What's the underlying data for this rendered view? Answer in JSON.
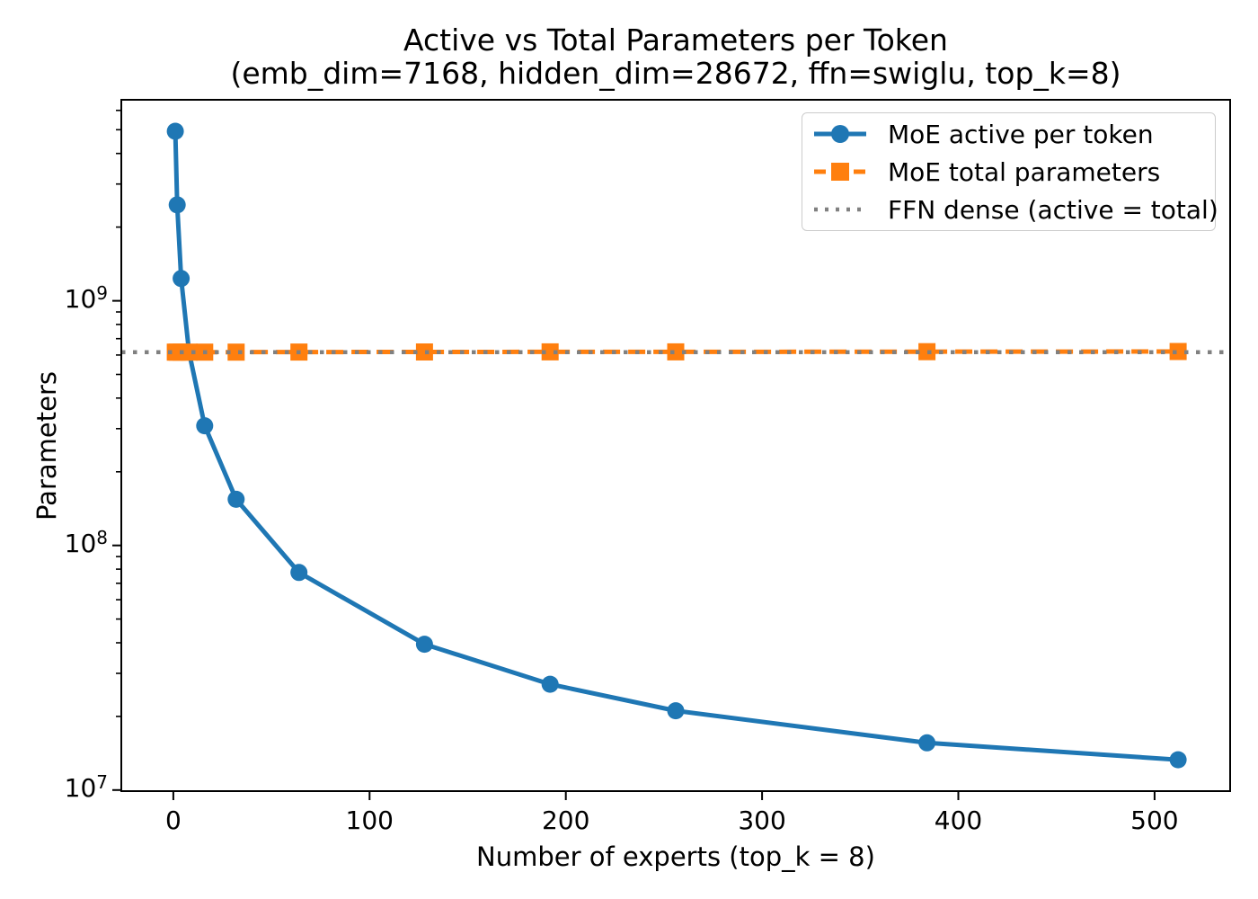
{
  "figure_background": "#ffffff",
  "chart_data": {
    "type": "line",
    "title": "Active vs Total Parameters per Token",
    "subtitle": "(emb_dim=7168, hidden_dim=28672, ffn=swiglu, top_k=8)",
    "xlabel": "Number of experts (top_k = 8)",
    "ylabel": "Parameters",
    "x_scale": "linear",
    "y_scale": "log",
    "grid": false,
    "legend_position": "upper right",
    "xlim": [
      -26.5,
      538.5
    ],
    "ylim": [
      9900000,
      6630000000
    ],
    "x_ticks": [
      {
        "label": "0",
        "value": 0
      },
      {
        "label": "100",
        "value": 100
      },
      {
        "label": "200",
        "value": 200
      },
      {
        "label": "300",
        "value": 300
      },
      {
        "label": "400",
        "value": 400
      },
      {
        "label": "500",
        "value": 500
      }
    ],
    "y_ticks": [
      {
        "base": "10",
        "exp": "7",
        "value": 10000000
      },
      {
        "base": "10",
        "exp": "8",
        "value": 100000000
      },
      {
        "base": "10",
        "exp": "9",
        "value": 1000000000
      }
    ],
    "x": [
      1,
      2,
      4,
      8,
      16,
      32,
      64,
      128,
      192,
      256,
      384,
      512
    ],
    "series": [
      {
        "name": "MoE active per token",
        "color": "#1f77b4",
        "style": "solid",
        "marker": "circle",
        "values": [
          4932508672,
          2466265088,
          1233154048,
          616620032,
          308396032,
          154370048,
          77529088,
          39452672,
          27066368,
          21102592,
          15597568,
          13303808
        ]
      },
      {
        "name": "MoE total parameters",
        "color": "#ff7f0e",
        "style": "dashed",
        "marker": "square",
        "values": [
          616569856,
          616577024,
          616591360,
          616620032,
          616677376,
          616792064,
          617021440,
          617480192,
          617938944,
          618397696,
          619315200,
          620232704
        ]
      },
      {
        "name": "FFN dense (active = total)",
        "color": "#808080",
        "style": "dotted",
        "marker": "none",
        "constant": 616562688,
        "span": "full-width"
      }
    ],
    "legend": [
      {
        "label": "MoE active per token",
        "color": "#1f77b4",
        "style": "solid",
        "marker": "circle"
      },
      {
        "label": "MoE total parameters",
        "color": "#ff7f0e",
        "style": "dashed",
        "marker": "square"
      },
      {
        "label": "FFN dense (active = total)",
        "color": "#808080",
        "style": "dotted",
        "marker": "none"
      }
    ]
  }
}
